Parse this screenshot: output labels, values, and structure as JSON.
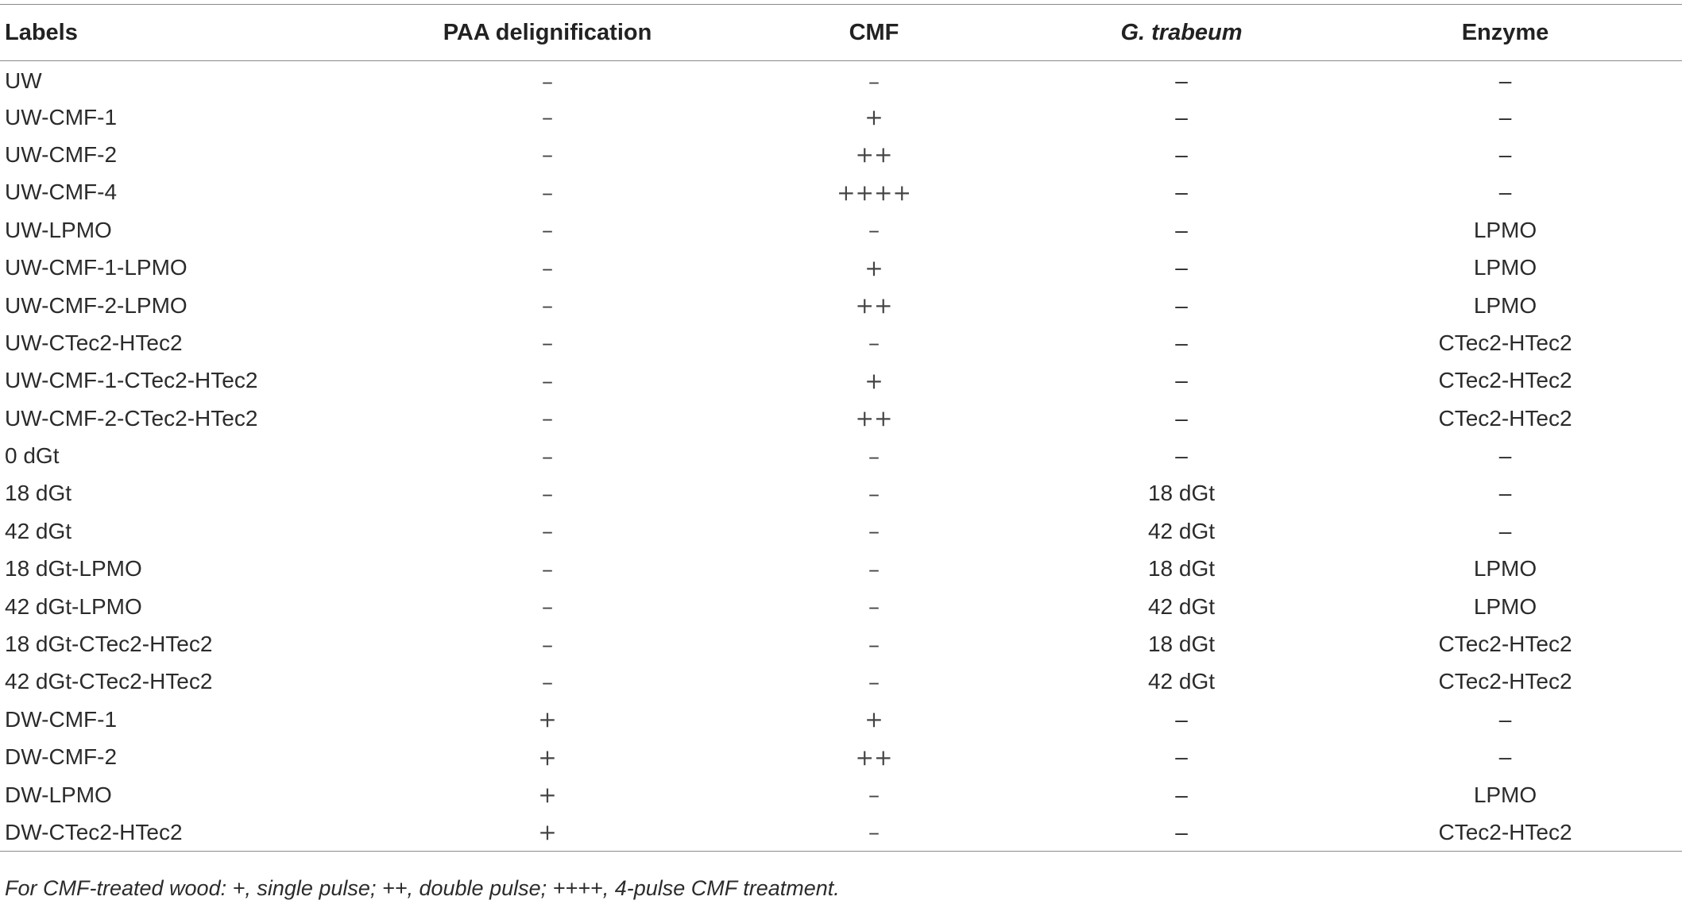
{
  "table": {
    "headers": {
      "labels": "Labels",
      "paa": "PAA delignification",
      "cmf": "CMF",
      "gt": "G. trabeum",
      "enzyme": "Enzyme"
    },
    "rows": [
      {
        "label": "UW",
        "paa": "–",
        "cmf": "–",
        "gt": "–",
        "enzyme": "–"
      },
      {
        "label": "UW-CMF-1",
        "paa": "–",
        "cmf": "+",
        "gt": "–",
        "enzyme": "–"
      },
      {
        "label": "UW-CMF-2",
        "paa": "–",
        "cmf": "++",
        "gt": "–",
        "enzyme": "–"
      },
      {
        "label": "UW-CMF-4",
        "paa": "–",
        "cmf": "++++",
        "gt": "–",
        "enzyme": "–"
      },
      {
        "label": "UW-LPMO",
        "paa": "–",
        "cmf": "–",
        "gt": "–",
        "enzyme": "LPMO"
      },
      {
        "label": "UW-CMF-1-LPMO",
        "paa": "–",
        "cmf": "+",
        "gt": "–",
        "enzyme": "LPMO"
      },
      {
        "label": "UW-CMF-2-LPMO",
        "paa": "–",
        "cmf": "++",
        "gt": "–",
        "enzyme": "LPMO"
      },
      {
        "label": "UW-CTec2-HTec2",
        "paa": "–",
        "cmf": "–",
        "gt": "–",
        "enzyme": "CTec2-HTec2"
      },
      {
        "label": "UW-CMF-1-CTec2-HTec2",
        "paa": "–",
        "cmf": "+",
        "gt": "–",
        "enzyme": "CTec2-HTec2"
      },
      {
        "label": "UW-CMF-2-CTec2-HTec2",
        "paa": "–",
        "cmf": "++",
        "gt": "–",
        "enzyme": "CTec2-HTec2"
      },
      {
        "label": "0 dGt",
        "paa": "–",
        "cmf": "–",
        "gt": "–",
        "enzyme": "–"
      },
      {
        "label": "18 dGt",
        "paa": "–",
        "cmf": "–",
        "gt": "18 dGt",
        "enzyme": "–"
      },
      {
        "label": "42 dGt",
        "paa": "–",
        "cmf": "–",
        "gt": "42 dGt",
        "enzyme": "–"
      },
      {
        "label": "18 dGt-LPMO",
        "paa": "–",
        "cmf": "–",
        "gt": "18 dGt",
        "enzyme": "LPMO"
      },
      {
        "label": "42 dGt-LPMO",
        "paa": "–",
        "cmf": "–",
        "gt": "42 dGt",
        "enzyme": "LPMO"
      },
      {
        "label": "18 dGt-CTec2-HTec2",
        "paa": "–",
        "cmf": "–",
        "gt": "18 dGt",
        "enzyme": "CTec2-HTec2"
      },
      {
        "label": "42 dGt-CTec2-HTec2",
        "paa": "–",
        "cmf": "–",
        "gt": "42 dGt",
        "enzyme": "CTec2-HTec2"
      },
      {
        "label": "DW-CMF-1",
        "paa": "+",
        "cmf": "+",
        "gt": "–",
        "enzyme": "–"
      },
      {
        "label": "DW-CMF-2",
        "paa": "+",
        "cmf": "++",
        "gt": "–",
        "enzyme": "–"
      },
      {
        "label": "DW-LPMO",
        "paa": "+",
        "cmf": "–",
        "gt": "–",
        "enzyme": "LPMO"
      },
      {
        "label": "DW-CTec2-HTec2",
        "paa": "+",
        "cmf": "–",
        "gt": "–",
        "enzyme": "CTec2-HTec2"
      }
    ]
  },
  "footnote": "For CMF-treated wood: +, single pulse; ++, double pulse; ++++, 4-pulse CMF treatment."
}
